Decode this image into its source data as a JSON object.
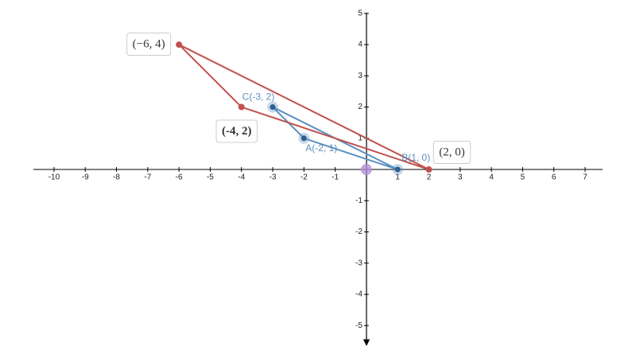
{
  "chart_data": {
    "type": "polygon",
    "xlim": [
      -10.66,
      7.56
    ],
    "ylim": [
      -5.58,
      4.97
    ],
    "xticks": [
      -10,
      -9,
      -8,
      -7,
      -6,
      -5,
      -4,
      -3,
      -2,
      -1,
      1,
      2,
      3,
      4,
      5,
      6,
      7
    ],
    "yticks": [
      -5,
      -4,
      -3,
      -2,
      -1,
      1,
      2,
      3,
      4,
      5
    ],
    "series": [
      {
        "color": "#5b8fc0",
        "label_style": "plain",
        "x": [
          -2,
          1,
          -3
        ],
        "y": [
          1,
          0,
          2
        ],
        "labels": [
          "A(-2, 1)",
          "B(1, 0)",
          "C(-3, 2)"
        ]
      },
      {
        "color": "#c0504d",
        "label_style": "box",
        "x": [
          -6,
          2,
          -4
        ],
        "y": [
          4,
          0,
          2
        ],
        "labels": [
          "(−6, 4)",
          "(2, 0)",
          "(-4, 2)"
        ]
      }
    ],
    "points": [
      {
        "x": 0,
        "y": 0,
        "color": "#b48fd9"
      }
    ]
  }
}
